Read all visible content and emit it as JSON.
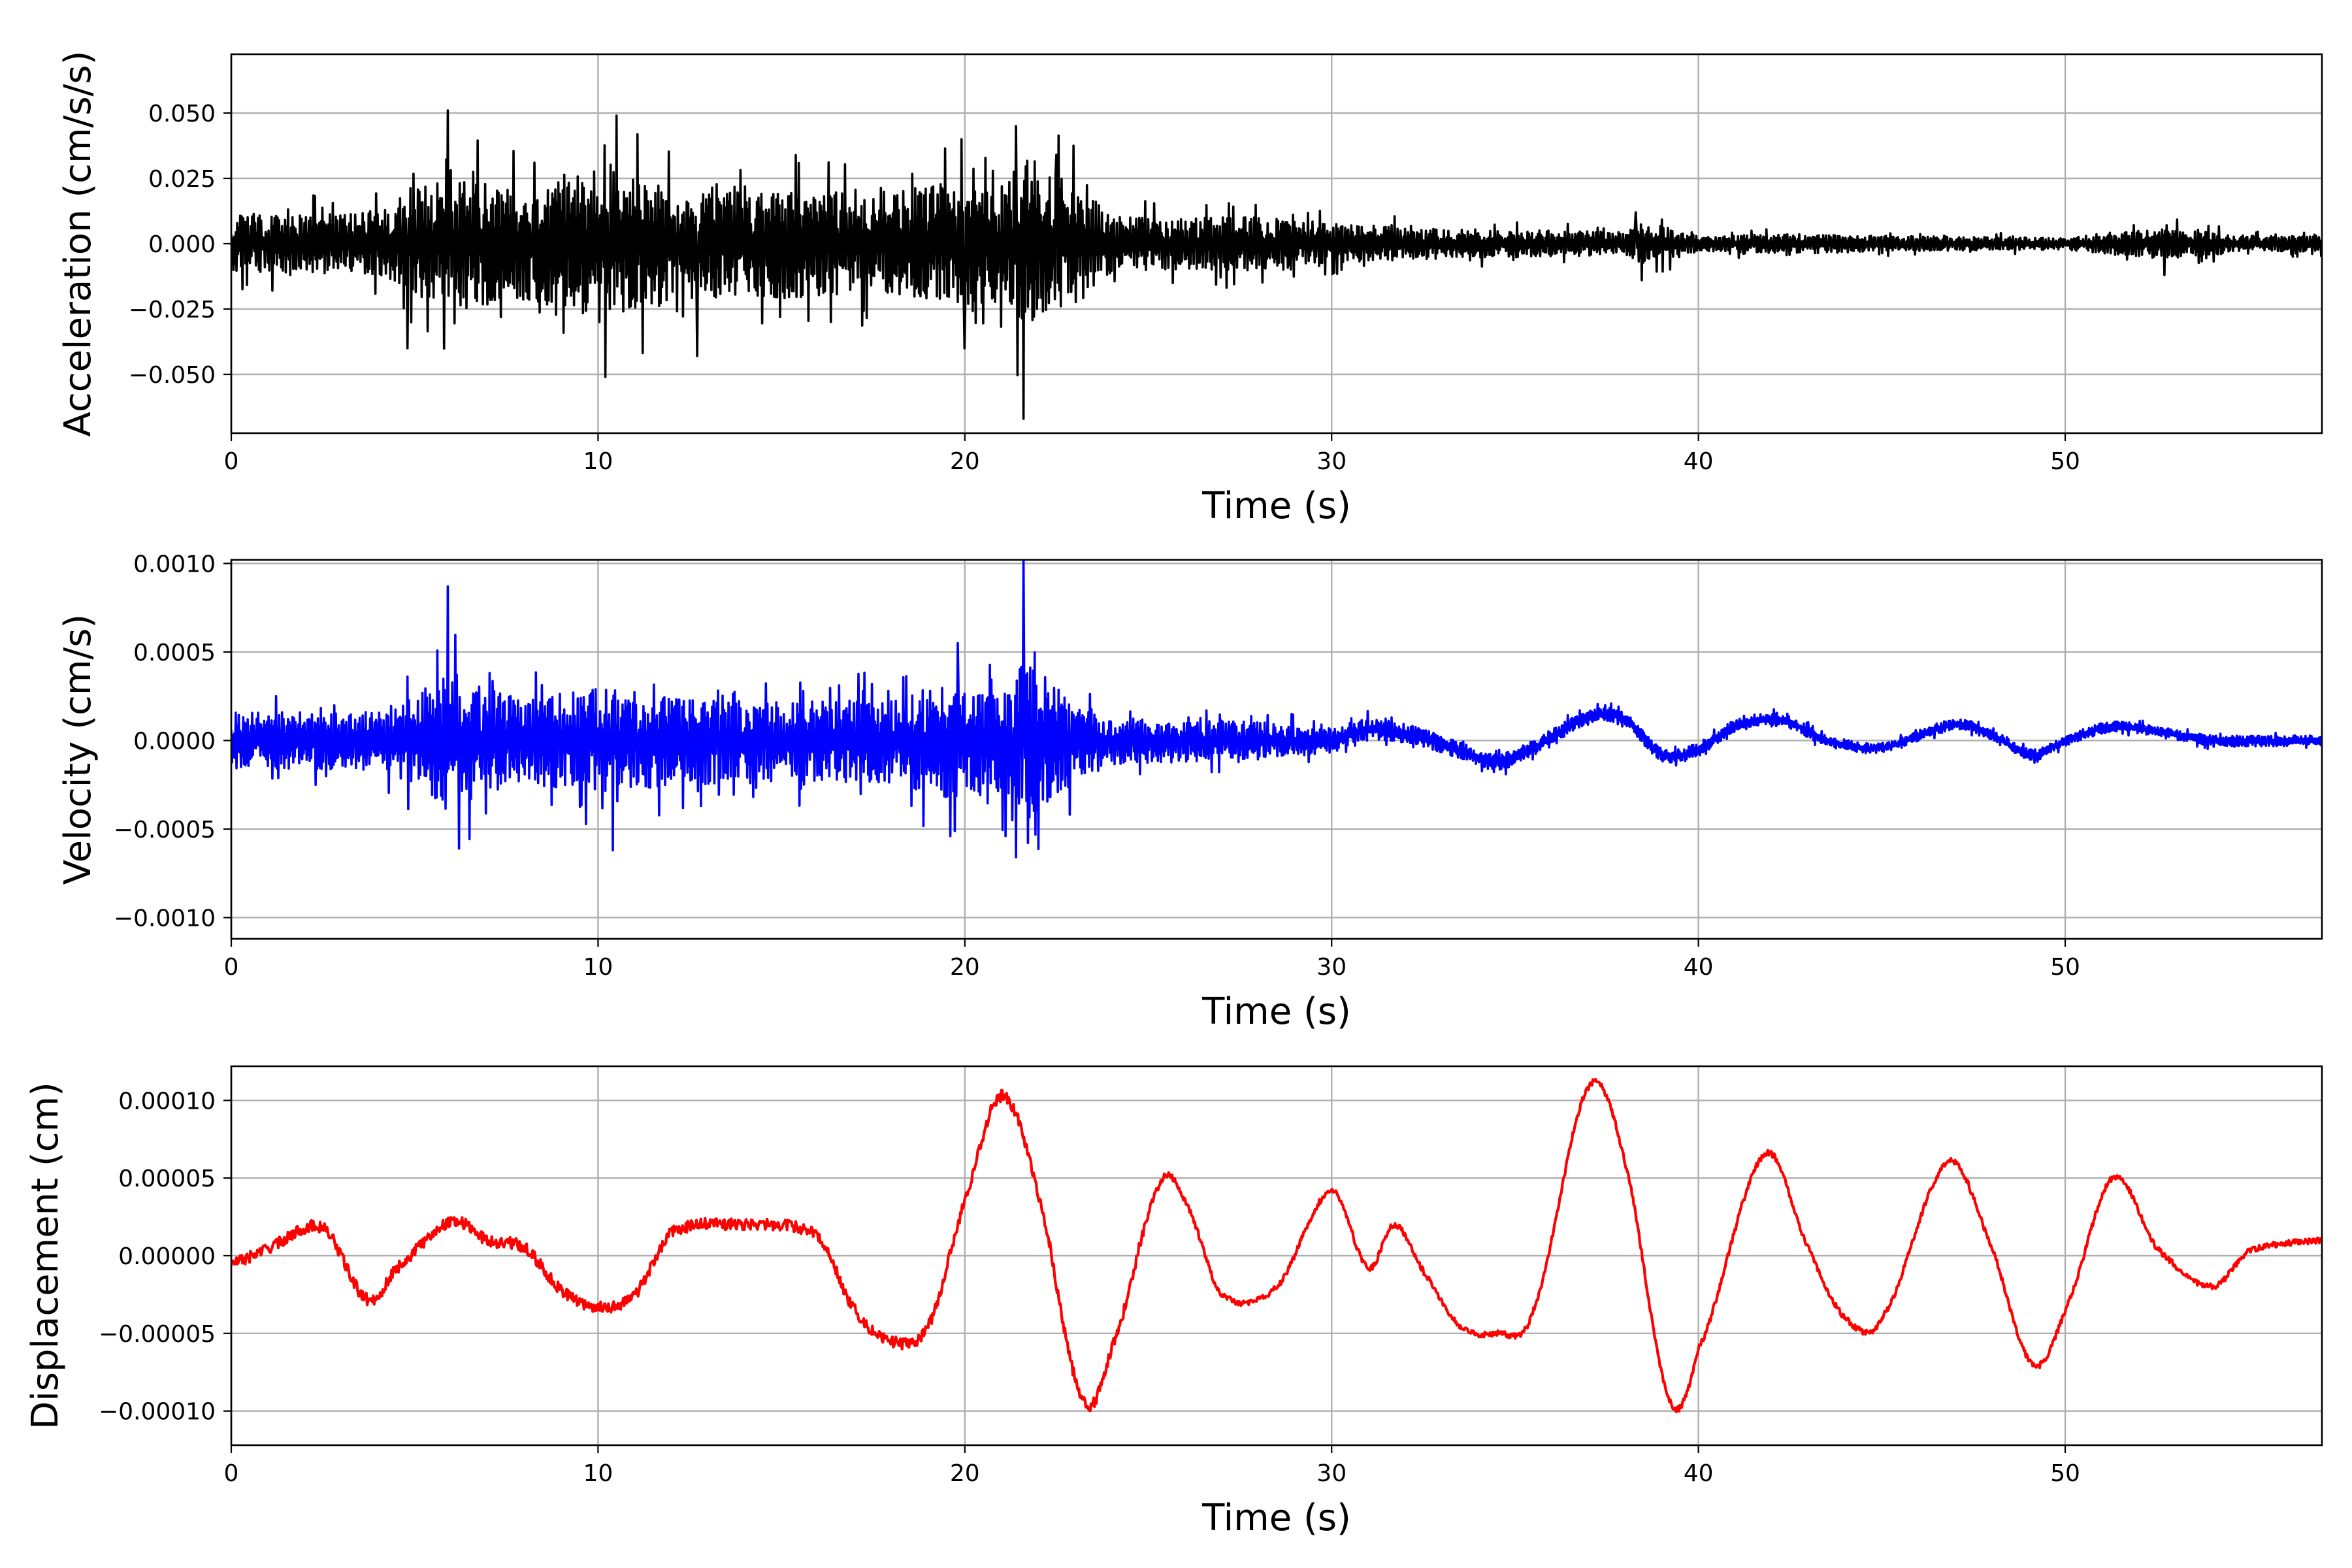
{
  "chart_data": [
    {
      "type": "line",
      "xlabel": "Time (s)",
      "ylabel": "Acceleration (cm/s/s)",
      "xlim": [
        0,
        57
      ],
      "ylim": [
        -0.0725,
        0.0725
      ],
      "xticks": [
        0,
        10,
        20,
        30,
        40,
        50
      ],
      "xtick_labels": [
        "0",
        "10",
        "20",
        "30",
        "40",
        "50"
      ],
      "yticks": [
        -0.05,
        -0.025,
        0.0,
        0.025,
        0.05
      ],
      "ytick_labels": [
        "−0.050",
        "−0.025",
        "0.000",
        "0.025",
        "0.050"
      ],
      "grid": true,
      "series": [
        {
          "color": "#000000",
          "envelope": {
            "t": [
              0,
              4,
              5,
              6,
              8,
              10,
              12,
              14,
              16,
              18,
              19.7,
              21,
              21.6,
              23,
              24,
              26,
              28,
              30,
              32,
              35,
              38,
              38.5,
              40,
              43,
              45,
              50,
              52.7,
              55,
              57
            ],
            "amp": [
              0.014,
              0.016,
              0.028,
              0.035,
              0.028,
              0.038,
              0.032,
              0.03,
              0.027,
              0.026,
              0.032,
              0.03,
              0.045,
              0.032,
              0.014,
              0.013,
              0.014,
              0.011,
              0.008,
              0.007,
              0.006,
              0.012,
              0.004,
              0.005,
              0.004,
              0.003,
              0.008,
              0.004,
              0.004
            ]
          },
          "spikes": [
            {
              "t": 5.9,
              "v": 0.051
            },
            {
              "t": 10.2,
              "v": -0.051
            },
            {
              "t": 10.5,
              "v": 0.049
            },
            {
              "t": 19.9,
              "v": 0.04
            },
            {
              "t": 20.0,
              "v": -0.04
            },
            {
              "t": 21.6,
              "v": -0.067
            },
            {
              "t": 21.4,
              "v": 0.045
            },
            {
              "t": 22.5,
              "v": 0.034
            },
            {
              "t": 12.7,
              "v": -0.043
            },
            {
              "t": 4.8,
              "v": -0.04
            },
            {
              "t": 52.7,
              "v": -0.012
            },
            {
              "t": 38.3,
              "v": 0.012
            }
          ]
        }
      ]
    },
    {
      "type": "line",
      "xlabel": "Time (s)",
      "ylabel": "Velocity (cm/s)",
      "xlim": [
        0,
        57
      ],
      "ylim": [
        -0.00112,
        0.00102
      ],
      "xticks": [
        0,
        10,
        20,
        30,
        40,
        50
      ],
      "xtick_labels": [
        "0",
        "10",
        "20",
        "30",
        "40",
        "50"
      ],
      "yticks": [
        -0.001,
        -0.0005,
        0.0,
        0.0005,
        0.001
      ],
      "ytick_labels": [
        "−0.0010",
        "−0.0005",
        "0.0000",
        "0.0005",
        "0.0010"
      ],
      "grid": true,
      "series": [
        {
          "color": "#0000ff",
          "envelope": {
            "t": [
              0,
              4,
              5,
              6,
              8,
              10,
              12,
              14,
              16,
              18,
              19.7,
              21,
              21.6,
              23,
              24,
              26,
              28,
              30,
              32,
              35,
              38,
              40,
              45,
              50,
              57
            ],
            "amp": [
              0.00021,
              0.00022,
              0.00035,
              0.0005,
              0.0003,
              0.00042,
              0.00033,
              0.00032,
              0.0003,
              0.00032,
              0.00045,
              0.0004,
              0.0006,
              0.00032,
              0.00018,
              0.00016,
              0.00014,
              0.0001,
              7e-05,
              6e-05,
              5e-05,
              5e-05,
              4e-05,
              4e-05,
              4e-05
            ]
          },
          "drift": {
            "t": [
              0,
              30,
              31,
              32,
              33,
              34.5,
              35.5,
              37,
              38,
              39,
              40,
              41,
              42.2,
              43.5,
              45,
              47,
              48,
              49.1,
              50,
              51.3,
              52.5,
              54,
              57
            ],
            "v": [
              0.0,
              0.0,
              6e-05,
              4e-05,
              -2e-05,
              -0.00012,
              -4e-05,
              0.00013,
              0.00012,
              -8e-05,
              -5e-05,
              8e-05,
              0.00012,
              0.0,
              -4e-05,
              9e-05,
              3e-05,
              -8e-05,
              0.0,
              8e-05,
              5e-05,
              0.0,
              0.0
            ]
          },
          "spikes": [
            {
              "t": 5.9,
              "v": 0.00087
            },
            {
              "t": 6.2,
              "v": -0.00061
            },
            {
              "t": 10.4,
              "v": -0.00062
            },
            {
              "t": 19.6,
              "v": -0.00054
            },
            {
              "t": 21.6,
              "v": 0.00102
            },
            {
              "t": 19.8,
              "v": 0.00055
            },
            {
              "t": 21.3,
              "v": -0.00045
            }
          ]
        }
      ]
    },
    {
      "type": "line",
      "xlabel": "Time (s)",
      "ylabel": "Displacement (cm)",
      "xlim": [
        0,
        57
      ],
      "ylim": [
        -0.000122,
        0.000122
      ],
      "xticks": [
        0,
        10,
        20,
        30,
        40,
        50
      ],
      "xtick_labels": [
        "0",
        "10",
        "20",
        "30",
        "40",
        "50"
      ],
      "yticks": [
        -0.0001,
        -5e-05,
        0.0,
        5e-05,
        0.0001
      ],
      "ytick_labels": [
        "−0.00010",
        "−0.00005",
        "0.00000",
        "0.00005",
        "0.00010"
      ],
      "grid": true,
      "series": [
        {
          "color": "#ff0000",
          "x": [
            0,
            1,
            2.5,
            3.7,
            4.5,
            6,
            7,
            8,
            9,
            10,
            11,
            12,
            14,
            16,
            17,
            18,
            19,
            20,
            21,
            22,
            23.2,
            24,
            25.3,
            26,
            27,
            28.5,
            30,
            31,
            31.7,
            32.5,
            33.5,
            34.5,
            35.5,
            37,
            38,
            39.2,
            40,
            41.8,
            43,
            44,
            45,
            46.8,
            48,
            49.1,
            50,
            51.3,
            52.5,
            54,
            55,
            57
          ],
          "y": [
            -5e-06,
            5e-06,
            1.8e-05,
            -2.8e-05,
            -8e-06,
            2.2e-05,
            1e-05,
            5e-06,
            -2.2e-05,
            -3.3e-05,
            -2.5e-05,
            1.5e-05,
            2e-05,
            1.3e-05,
            -3.5e-05,
            -5.5e-05,
            -4.5e-05,
            3.5e-05,
            0.000103,
            4e-05,
            -9.2e-05,
            -6e-05,
            4.5e-05,
            3.5e-05,
            -2.5e-05,
            -2e-05,
            4.2e-05,
            -8e-06,
            2e-05,
            -1e-05,
            -4.5e-05,
            -5e-05,
            -3.5e-05,
            0.000108,
            6e-05,
            -9.2e-05,
            -6e-05,
            6.5e-05,
            5e-06,
            -4e-05,
            -4e-05,
            6e-05,
            5e-06,
            -7e-05,
            -3.5e-05,
            5e-05,
            5e-06,
            -2e-05,
            3e-06,
            1e-05
          ]
        }
      ]
    }
  ]
}
